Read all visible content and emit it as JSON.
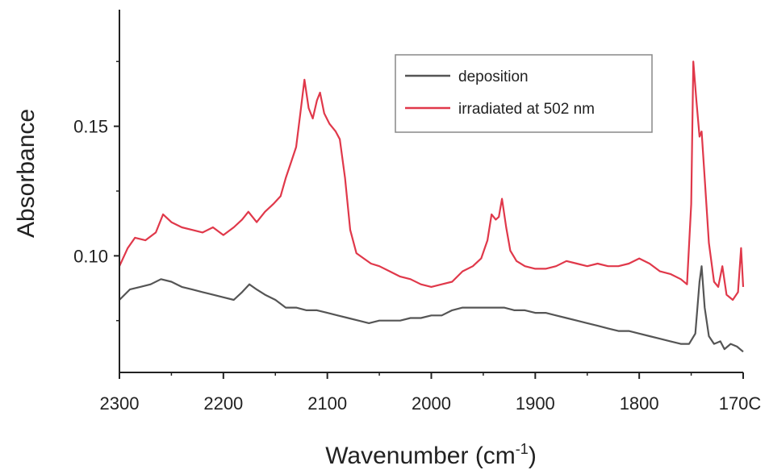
{
  "chart_data": {
    "type": "line",
    "title": "",
    "xlabel": "Wavenumber (cm",
    "xlabel_sup": "-1",
    "xlabel_close": ")",
    "ylabel": "Absorbance",
    "xlim": [
      2300,
      1700
    ],
    "x_reversed": true,
    "ylim": [
      0.055,
      0.195
    ],
    "x_ticks": [
      "2300",
      "2200",
      "2100",
      "2000",
      "1900",
      "1800",
      "170C"
    ],
    "x_tick_values": [
      2300,
      2200,
      2100,
      2000,
      1900,
      1800,
      1700
    ],
    "y_ticks": [
      "0.10",
      "0.15"
    ],
    "y_tick_values": [
      0.1,
      0.15
    ],
    "grid": false,
    "legend_position": "top-right",
    "series": [
      {
        "name": "deposition",
        "color": "#555555",
        "points": [
          [
            2300,
            0.083
          ],
          [
            2290,
            0.087
          ],
          [
            2280,
            0.088
          ],
          [
            2270,
            0.089
          ],
          [
            2260,
            0.091
          ],
          [
            2250,
            0.09
          ],
          [
            2240,
            0.088
          ],
          [
            2230,
            0.087
          ],
          [
            2220,
            0.086
          ],
          [
            2210,
            0.085
          ],
          [
            2200,
            0.084
          ],
          [
            2190,
            0.083
          ],
          [
            2182,
            0.086
          ],
          [
            2175,
            0.089
          ],
          [
            2168,
            0.087
          ],
          [
            2160,
            0.085
          ],
          [
            2150,
            0.083
          ],
          [
            2140,
            0.08
          ],
          [
            2130,
            0.08
          ],
          [
            2120,
            0.079
          ],
          [
            2110,
            0.079
          ],
          [
            2100,
            0.078
          ],
          [
            2090,
            0.077
          ],
          [
            2080,
            0.076
          ],
          [
            2070,
            0.075
          ],
          [
            2060,
            0.074
          ],
          [
            2050,
            0.075
          ],
          [
            2040,
            0.075
          ],
          [
            2030,
            0.075
          ],
          [
            2020,
            0.076
          ],
          [
            2010,
            0.076
          ],
          [
            2000,
            0.077
          ],
          [
            1990,
            0.077
          ],
          [
            1980,
            0.079
          ],
          [
            1970,
            0.08
          ],
          [
            1960,
            0.08
          ],
          [
            1950,
            0.08
          ],
          [
            1940,
            0.08
          ],
          [
            1930,
            0.08
          ],
          [
            1920,
            0.079
          ],
          [
            1910,
            0.079
          ],
          [
            1900,
            0.078
          ],
          [
            1890,
            0.078
          ],
          [
            1880,
            0.077
          ],
          [
            1870,
            0.076
          ],
          [
            1860,
            0.075
          ],
          [
            1850,
            0.074
          ],
          [
            1840,
            0.073
          ],
          [
            1830,
            0.072
          ],
          [
            1820,
            0.071
          ],
          [
            1810,
            0.071
          ],
          [
            1800,
            0.07
          ],
          [
            1790,
            0.069
          ],
          [
            1780,
            0.068
          ],
          [
            1770,
            0.067
          ],
          [
            1760,
            0.066
          ],
          [
            1752,
            0.066
          ],
          [
            1746,
            0.07
          ],
          [
            1742,
            0.09
          ],
          [
            1740,
            0.096
          ],
          [
            1737,
            0.08
          ],
          [
            1733,
            0.069
          ],
          [
            1728,
            0.066
          ],
          [
            1722,
            0.067
          ],
          [
            1718,
            0.064
          ],
          [
            1712,
            0.066
          ],
          [
            1706,
            0.065
          ],
          [
            1700,
            0.063
          ]
        ]
      },
      {
        "name": "irradiated at 502 nm",
        "color": "#e0384a",
        "points": [
          [
            2300,
            0.096
          ],
          [
            2292,
            0.103
          ],
          [
            2285,
            0.107
          ],
          [
            2275,
            0.106
          ],
          [
            2265,
            0.109
          ],
          [
            2258,
            0.116
          ],
          [
            2250,
            0.113
          ],
          [
            2240,
            0.111
          ],
          [
            2230,
            0.11
          ],
          [
            2220,
            0.109
          ],
          [
            2210,
            0.111
          ],
          [
            2200,
            0.108
          ],
          [
            2190,
            0.111
          ],
          [
            2182,
            0.114
          ],
          [
            2176,
            0.117
          ],
          [
            2168,
            0.113
          ],
          [
            2160,
            0.117
          ],
          [
            2152,
            0.12
          ],
          [
            2145,
            0.123
          ],
          [
            2140,
            0.13
          ],
          [
            2135,
            0.136
          ],
          [
            2130,
            0.142
          ],
          [
            2126,
            0.155
          ],
          [
            2122,
            0.168
          ],
          [
            2118,
            0.157
          ],
          [
            2114,
            0.153
          ],
          [
            2110,
            0.16
          ],
          [
            2107,
            0.163
          ],
          [
            2103,
            0.155
          ],
          [
            2098,
            0.151
          ],
          [
            2092,
            0.148
          ],
          [
            2088,
            0.145
          ],
          [
            2083,
            0.13
          ],
          [
            2078,
            0.11
          ],
          [
            2072,
            0.101
          ],
          [
            2065,
            0.099
          ],
          [
            2058,
            0.097
          ],
          [
            2050,
            0.096
          ],
          [
            2040,
            0.094
          ],
          [
            2030,
            0.092
          ],
          [
            2020,
            0.091
          ],
          [
            2010,
            0.089
          ],
          [
            2000,
            0.088
          ],
          [
            1990,
            0.089
          ],
          [
            1980,
            0.09
          ],
          [
            1970,
            0.094
          ],
          [
            1960,
            0.096
          ],
          [
            1952,
            0.099
          ],
          [
            1946,
            0.106
          ],
          [
            1942,
            0.116
          ],
          [
            1938,
            0.114
          ],
          [
            1935,
            0.115
          ],
          [
            1932,
            0.122
          ],
          [
            1928,
            0.111
          ],
          [
            1924,
            0.102
          ],
          [
            1918,
            0.098
          ],
          [
            1910,
            0.096
          ],
          [
            1900,
            0.095
          ],
          [
            1890,
            0.095
          ],
          [
            1880,
            0.096
          ],
          [
            1870,
            0.098
          ],
          [
            1860,
            0.097
          ],
          [
            1850,
            0.096
          ],
          [
            1840,
            0.097
          ],
          [
            1830,
            0.096
          ],
          [
            1820,
            0.096
          ],
          [
            1810,
            0.097
          ],
          [
            1800,
            0.099
          ],
          [
            1790,
            0.097
          ],
          [
            1780,
            0.094
          ],
          [
            1770,
            0.093
          ],
          [
            1760,
            0.091
          ],
          [
            1754,
            0.089
          ],
          [
            1750,
            0.12
          ],
          [
            1748,
            0.175
          ],
          [
            1745,
            0.16
          ],
          [
            1742,
            0.146
          ],
          [
            1740,
            0.148
          ],
          [
            1737,
            0.13
          ],
          [
            1733,
            0.105
          ],
          [
            1728,
            0.09
          ],
          [
            1724,
            0.088
          ],
          [
            1720,
            0.096
          ],
          [
            1716,
            0.085
          ],
          [
            1710,
            0.083
          ],
          [
            1705,
            0.086
          ],
          [
            1702,
            0.103
          ],
          [
            1700,
            0.088
          ]
        ]
      }
    ]
  }
}
